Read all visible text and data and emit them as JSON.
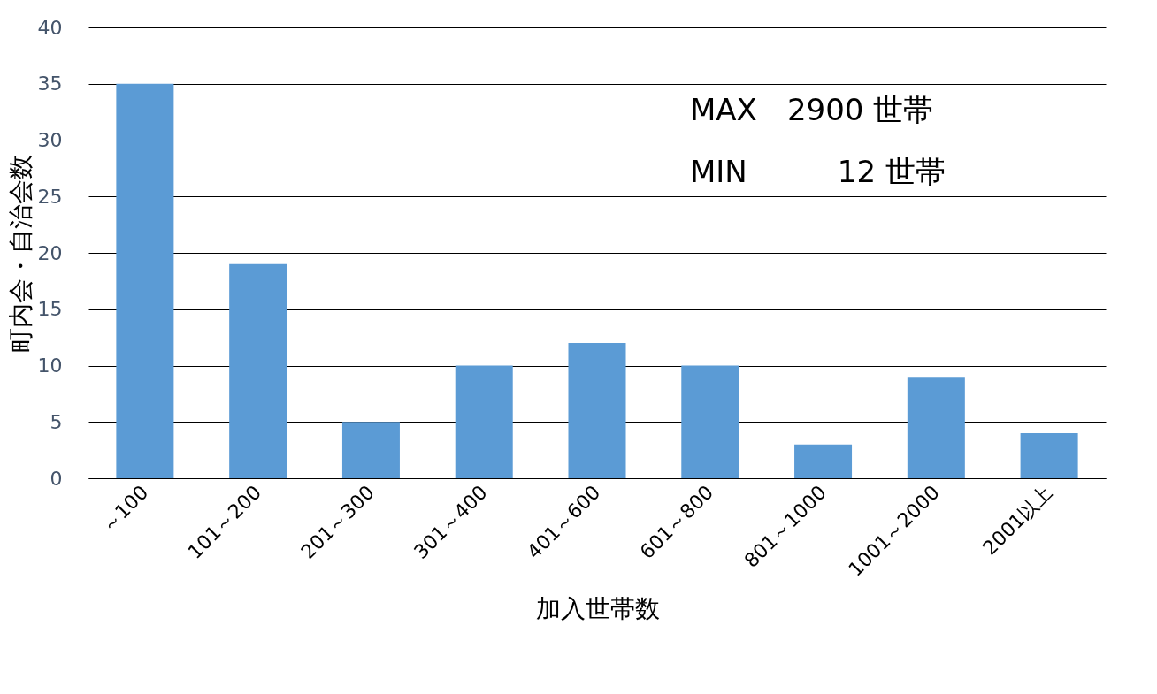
{
  "chart_data": {
    "type": "bar",
    "xlabel": "加入世帯数",
    "ylabel": "町内会・自治会数",
    "categories": [
      "～100",
      "101～200",
      "201～300",
      "301～400",
      "401～600",
      "601～800",
      "801～1000",
      "1001～2000",
      "2001以上"
    ],
    "values": [
      35,
      19,
      5,
      10,
      12,
      10,
      3,
      9,
      4
    ],
    "color": "#5b9bd5",
    "ylim": [
      0,
      40
    ],
    "yticks": [
      0,
      5,
      10,
      15,
      20,
      25,
      30,
      35,
      40
    ],
    "grid": "y",
    "annotations": [
      "MAX　2900 世帯",
      "MIN　　　12 世帯"
    ]
  }
}
